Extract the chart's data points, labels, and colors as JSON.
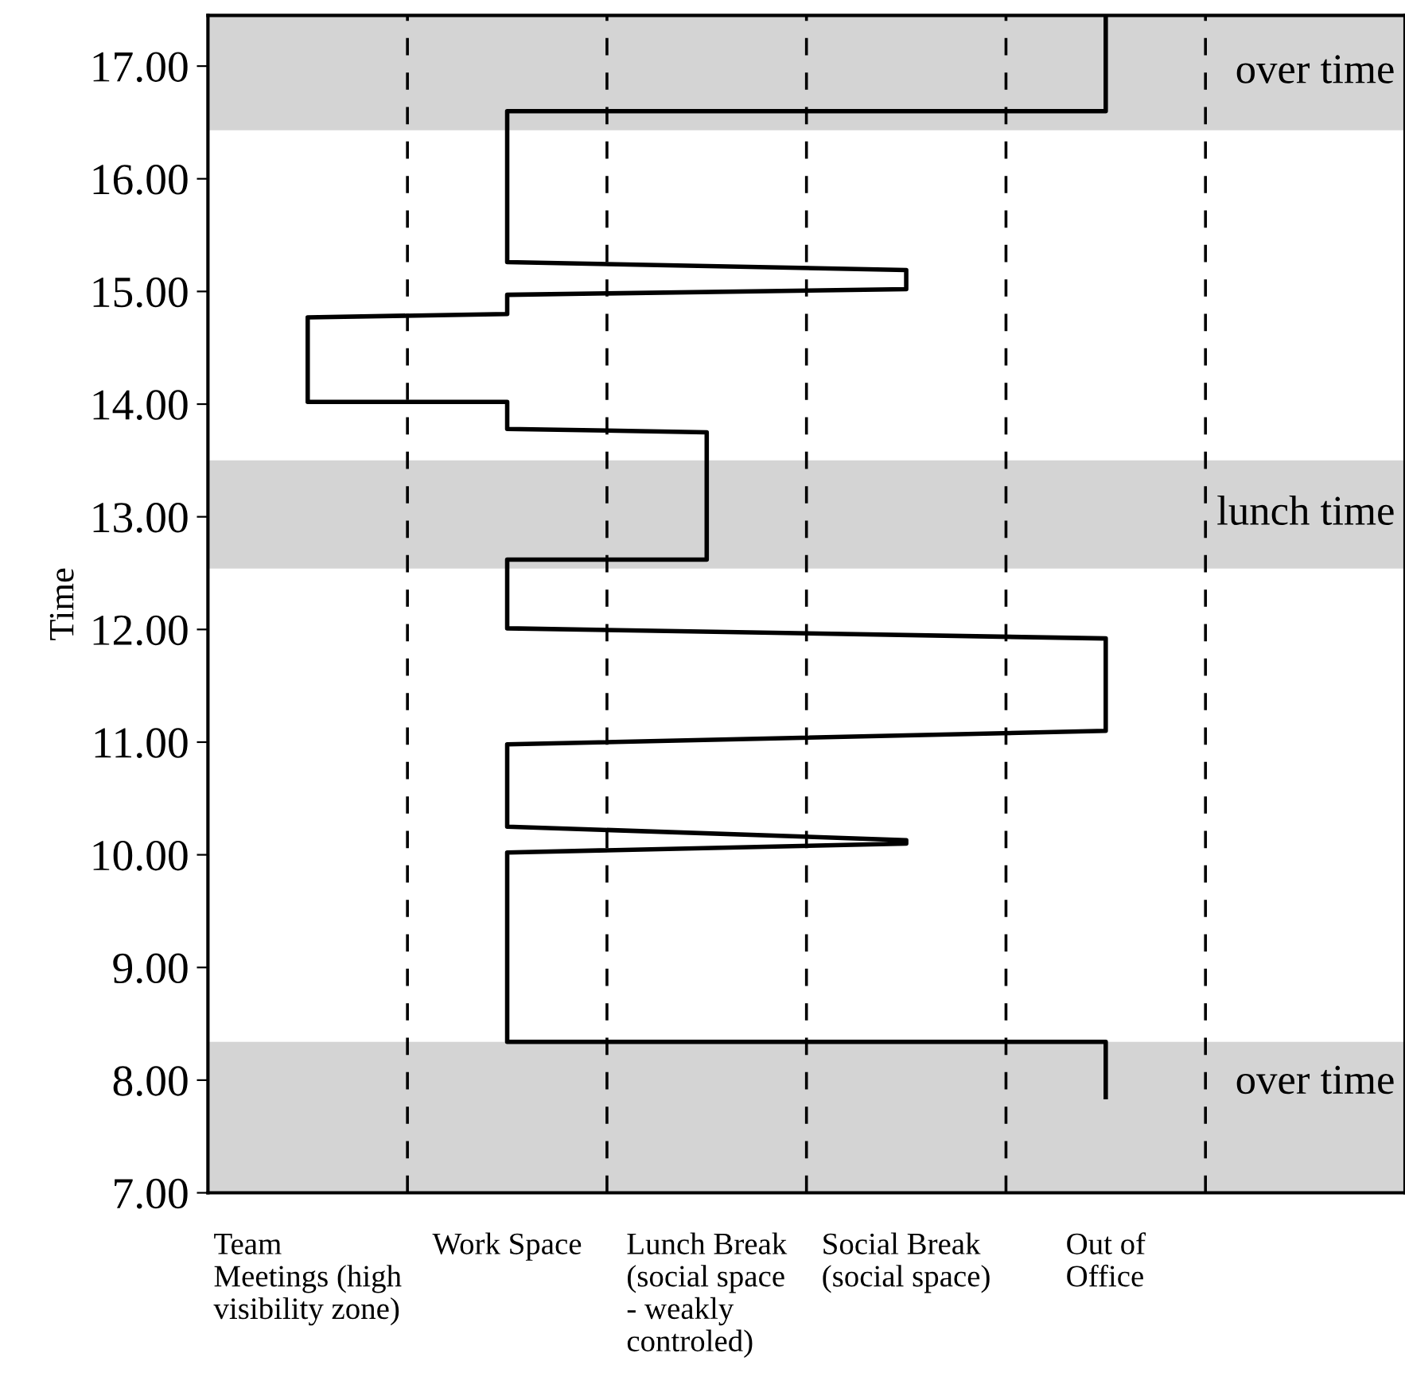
{
  "chart_data": {
    "type": "line",
    "ylabel": "Time",
    "categories": [
      "Team\nMeetings (high\nvisibility zone)",
      "Work Space",
      "Lunch Break\n(social space\n- weakly\ncontroled)",
      "Social Break\n(social space)",
      "Out of\nOffice",
      null
    ],
    "series": [
      {
        "color": "#000000",
        "x": [
          "Out of\nOffice",
          "Out of\nOffice",
          "Work Space",
          "Work Space",
          "Social Break\n(social space)",
          "Social Break\n(social space)",
          "Work Space",
          "Work Space",
          "Team\nMeetings (high\nvisibility zone)",
          "Team\nMeetings (high\nvisibility zone)",
          "Work Space",
          "Work Space",
          "Lunch Break\n(social space\n- weakly\ncontroled)",
          "Lunch Break\n(social space\n- weakly\ncontroled)",
          "Work Space",
          "Work Space",
          "Out of\nOffice",
          "Out of\nOffice",
          "Work Space",
          "Work Space",
          "Social Break\n(social space)",
          "Social Break\n(social space)",
          "Work Space",
          "Work Space",
          "Out of\nOffice",
          "Out of\nOffice"
        ],
        "values": [
          17.45,
          16.6,
          16.6,
          15.26,
          15.19,
          15.02,
          14.97,
          14.8,
          14.77,
          14.02,
          14.02,
          13.78,
          13.75,
          12.62,
          12.62,
          12.01,
          11.92,
          11.1,
          10.98,
          10.25,
          10.13,
          10.1,
          10.02,
          8.34,
          8.34,
          7.85
        ]
      }
    ],
    "ylim": [
      7,
      17.45
    ],
    "yticks": [
      {
        "value": 7,
        "label": "7.00"
      },
      {
        "value": 8,
        "label": "8.00"
      },
      {
        "value": 9,
        "label": "9.00"
      },
      {
        "value": 10,
        "label": "10.00"
      },
      {
        "value": 11,
        "label": "11.00"
      },
      {
        "value": 12,
        "label": "12.00"
      },
      {
        "value": 13,
        "label": "13.00"
      },
      {
        "value": 14,
        "label": "14.00"
      },
      {
        "value": 15,
        "label": "15.00"
      },
      {
        "value": 16,
        "label": "16.00"
      },
      {
        "value": 17,
        "label": "17.00"
      }
    ],
    "bands": [
      {
        "axis": "y",
        "from": 16.43,
        "to": 17.45,
        "label": "over time",
        "color": "#d4d4d4"
      },
      {
        "axis": "y",
        "from": 12.54,
        "to": 13.5,
        "label": "lunch time",
        "color": "#d4d4d4"
      },
      {
        "axis": "y",
        "from": 7,
        "to": 8.34,
        "label": "over time",
        "color": "#d4d4d4"
      }
    ],
    "grid": false,
    "legend": false,
    "marker": "none",
    "line_style": "solid"
  }
}
